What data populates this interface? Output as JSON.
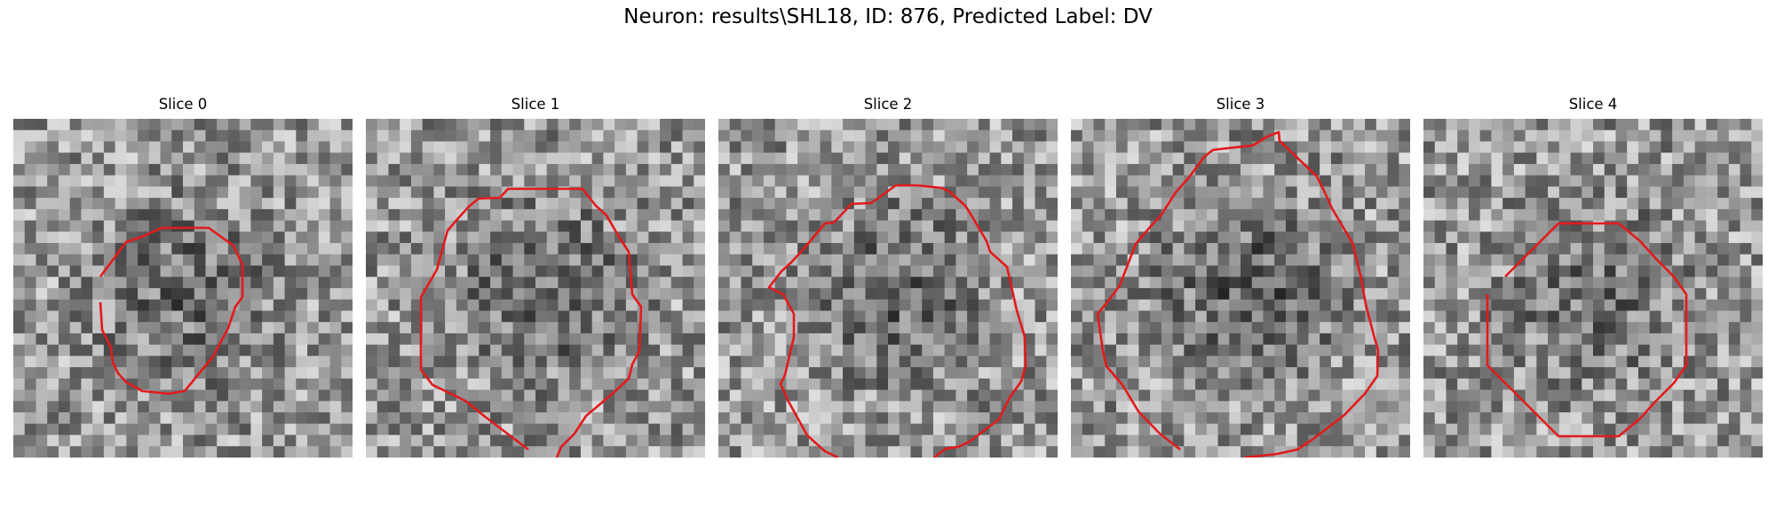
{
  "figure": {
    "title": "Neuron: results\\SHL18, ID: 876, Predicted Label: DV",
    "contour_color": "#e31a1c"
  },
  "panels": [
    {
      "title": "Slice 0"
    },
    {
      "title": "Slice 1"
    },
    {
      "title": "Slice 2"
    },
    {
      "title": "Slice 3"
    },
    {
      "title": "Slice 4"
    }
  ]
}
